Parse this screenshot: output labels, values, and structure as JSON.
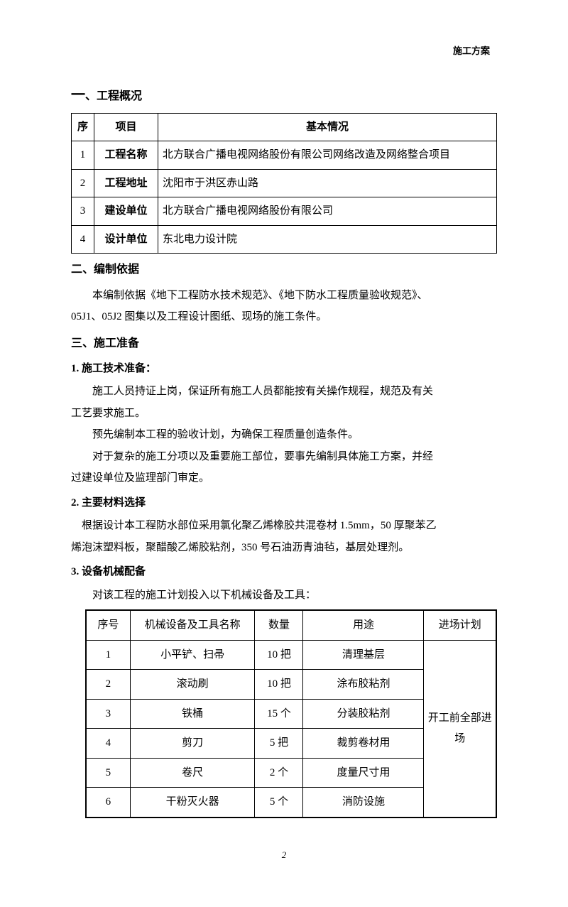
{
  "header": {
    "doc_title": "施工方案"
  },
  "sections": {
    "s1": {
      "title_prefix": "一",
      "title": "、工程概况"
    },
    "s2": {
      "title": "二、编制依据",
      "p1": "本编制依据《地下工程防水技术规范》、《地下防水工程质量验收规范》、",
      "p2": "05J1、05J2 图集以及工程设计图纸、现场的施工条件。"
    },
    "s3": {
      "title": "三、施工准备"
    },
    "s3_1": {
      "title": "1. 施工技术准备：",
      "p1": "施工人员持证上岗，保证所有施工人员都能按有关操作规程，规范及有关",
      "p1b": "工艺要求施工。",
      "p2": "预先编制本工程的验收计划，为确保工程质量创造条件。",
      "p3": "对于复杂的施工分项以及重要施工部位，要事先编制具体施工方案，并经",
      "p3b": "过建设单位及监理部门审定。"
    },
    "s3_2": {
      "title": "2. 主要材料选择",
      "p1": "根据设计本工程防水部位采用氯化聚乙烯橡胶共混卷材 1.5mm，50 厚聚苯乙",
      "p1b": "烯泡沫塑料板，聚醋酸乙烯胶粘剂，350 号石油沥青油毡，基层处理剂。"
    },
    "s3_3": {
      "title": "3. 设备机械配备",
      "p1": "对该工程的施工计划投入以下机械设备及工具："
    }
  },
  "info_table": {
    "headers": {
      "seq": "序",
      "item": "项目",
      "basic": "基本情况"
    },
    "rows": [
      {
        "seq": "1",
        "item": "工程名称",
        "basic": "北方联合广播电视网络股份有限公司网络改造及网络整合项目"
      },
      {
        "seq": "2",
        "item": "工程地址",
        "basic": "沈阳市于洪区赤山路"
      },
      {
        "seq": "3",
        "item": "建设单位",
        "basic": "北方联合广播电视网络股份有限公司"
      },
      {
        "seq": "4",
        "item": "设计单位",
        "basic": "东北电力设计院"
      }
    ]
  },
  "equip_table": {
    "headers": {
      "seq": "序号",
      "name": "机械设备及工具名称",
      "qty": "数量",
      "use": "用途",
      "plan": "进场计划"
    },
    "plan_merged": "开工前全部进场",
    "rows": [
      {
        "seq": "1",
        "name": "小平铲、扫帚",
        "qty": "10 把",
        "use": "清理基层"
      },
      {
        "seq": "2",
        "name": "滚动刷",
        "qty": "10 把",
        "use": "涂布胶粘剂"
      },
      {
        "seq": "3",
        "name": "铁桶",
        "qty": "15 个",
        "use": "分装胶粘剂"
      },
      {
        "seq": "4",
        "name": "剪刀",
        "qty": "5 把",
        "use": "裁剪卷材用"
      },
      {
        "seq": "5",
        "name": "卷尺",
        "qty": "2 个",
        "use": "度量尺寸用"
      },
      {
        "seq": "6",
        "name": "干粉灭火器",
        "qty": "5 个",
        "use": "消防设施"
      }
    ]
  },
  "page_number": "2"
}
